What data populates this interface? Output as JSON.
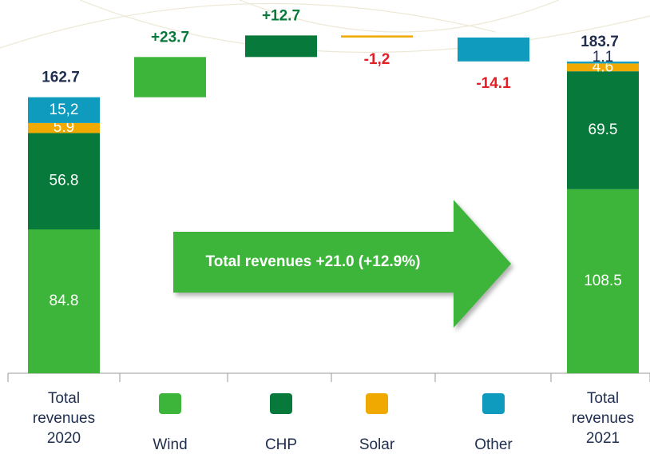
{
  "chart_data": {
    "type": "waterfall",
    "ylim": [
      0,
      220
    ],
    "start_label": "Total revenues 2020",
    "end_label": "Total revenues 2021",
    "start_total": 162.7,
    "end_total": 183.7,
    "series": [
      {
        "name": "Wind",
        "color": "#3db53a",
        "start": 84.8,
        "change": 23.7,
        "change_label": "+23.7",
        "end": 108.5
      },
      {
        "name": "CHP",
        "color": "#077a3b",
        "start": 56.8,
        "change": 12.7,
        "change_label": "+12.7",
        "end": 69.5
      },
      {
        "name": "Solar",
        "color": "#f0a900",
        "start": 5.9,
        "change": -1.2,
        "change_label": "-1,2",
        "end": 4.6
      },
      {
        "name": "Other",
        "color": "#0f9bbd",
        "start": 15.2,
        "start_label": "15,2",
        "change": -14.1,
        "end": 1.1
      }
    ],
    "annotation": "Total revenues +21.0 (+12.9%)"
  }
}
